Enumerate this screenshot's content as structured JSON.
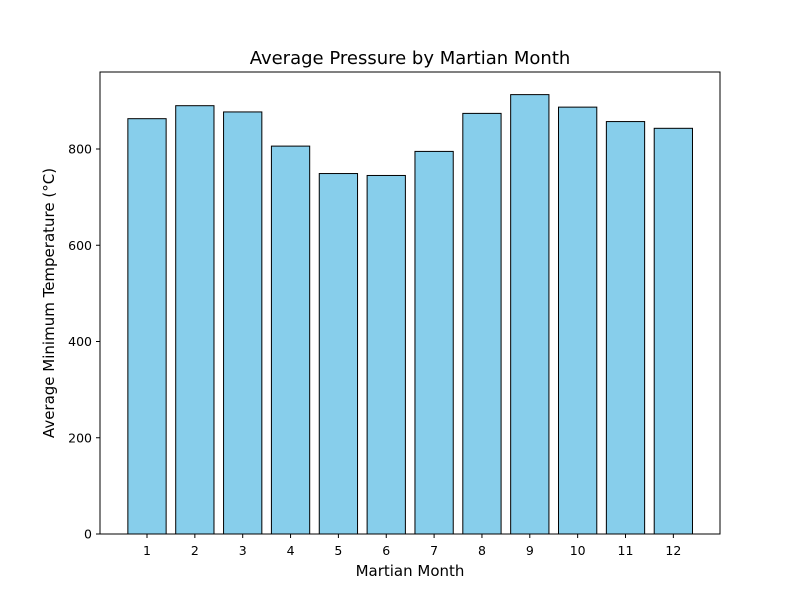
{
  "chart_data": {
    "type": "bar",
    "title": "Average Pressure by Martian Month",
    "xlabel": "Martian Month",
    "ylabel": "Average Minimum Temperature (°C)",
    "categories": [
      "1",
      "2",
      "3",
      "4",
      "5",
      "6",
      "7",
      "8",
      "9",
      "10",
      "11",
      "12"
    ],
    "values": [
      863,
      890,
      877,
      806,
      749,
      745,
      795,
      874,
      913,
      887,
      857,
      843
    ],
    "ylim": [
      0,
      960
    ],
    "yticks": [
      0,
      200,
      400,
      600,
      800
    ],
    "bar_color": "#87CEEB",
    "bar_edge_color": "#000000",
    "grid": false,
    "legend": "none"
  }
}
